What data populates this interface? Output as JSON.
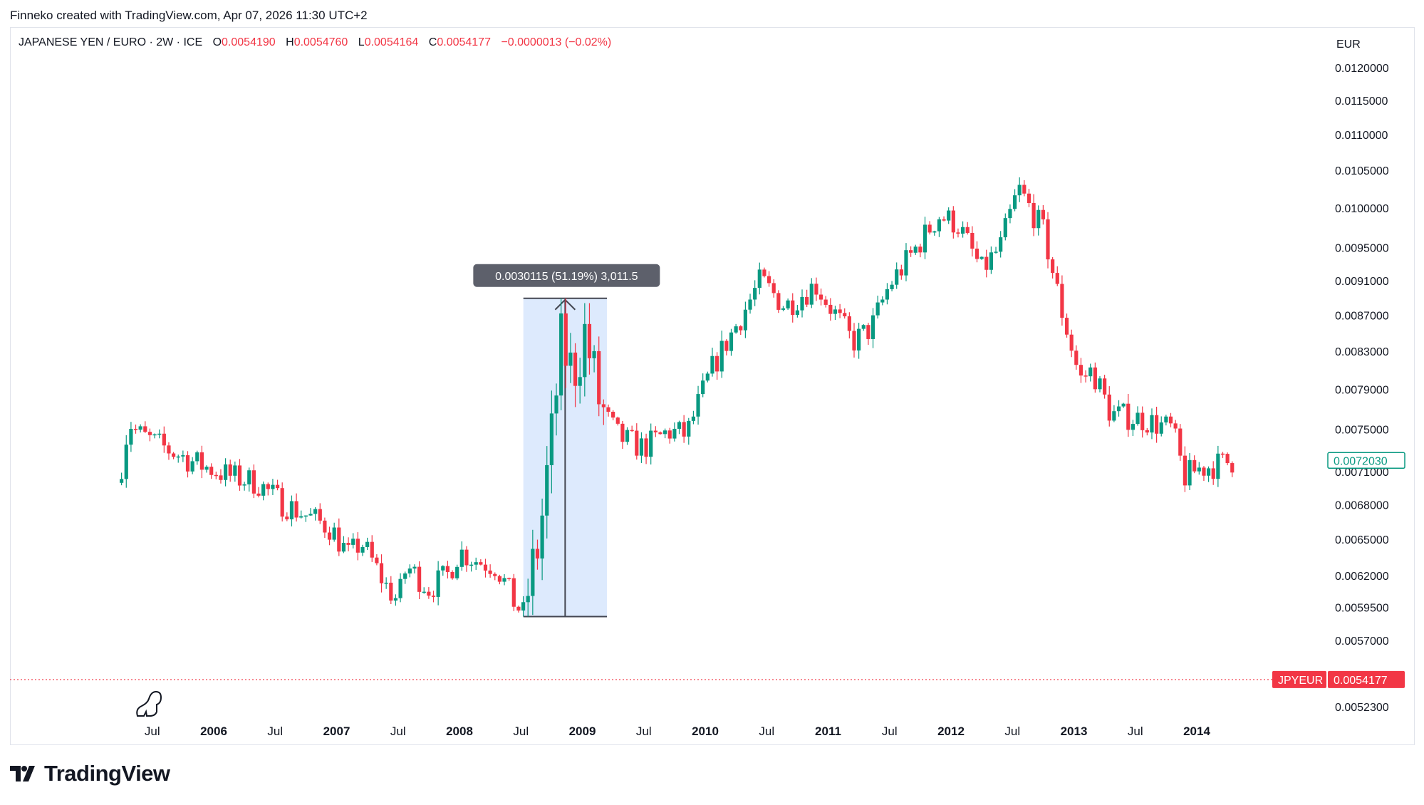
{
  "header": {
    "credit": "Finneko created with TradingView.com, Apr 07, 2026 11:30 UTC+2"
  },
  "legend": {
    "symbol": "JAPANESE YEN / EURO · 2W · ICE",
    "open_label": "O",
    "open": "0.0054190",
    "high_label": "H",
    "high": "0.0054760",
    "low_label": "L",
    "low": "0.0054164",
    "close_label": "C",
    "close": "0.0054177",
    "change": "−0.0000013 (−0.02%)"
  },
  "footer": {
    "brand": "TradingView"
  },
  "colors": {
    "up": "#089981",
    "down": "#f23645",
    "measure_fill": "#ddeafd",
    "measure_label_bg": "#5d606b",
    "last_price_bg": "#f23645"
  },
  "chart_data": {
    "type": "candlestick",
    "currency_label": "EUR",
    "y_ticks": [
      "0.0120000",
      "0.0115000",
      "0.0110000",
      "0.0105000",
      "0.0100000",
      "0.0095000",
      "0.0091000",
      "0.0087000",
      "0.0083000",
      "0.0079000",
      "0.0075000",
      "0.0071000",
      "0.0068000",
      "0.0065000",
      "0.0062000",
      "0.0059500",
      "0.0057000",
      "0.0052300"
    ],
    "x_ticks": [
      {
        "label": "Jul",
        "t": 2005.5,
        "bold": false
      },
      {
        "label": "2006",
        "t": 2006.0,
        "bold": true
      },
      {
        "label": "Jul",
        "t": 2006.5,
        "bold": false
      },
      {
        "label": "2007",
        "t": 2007.0,
        "bold": true
      },
      {
        "label": "Jul",
        "t": 2007.5,
        "bold": false
      },
      {
        "label": "2008",
        "t": 2008.0,
        "bold": true
      },
      {
        "label": "Jul",
        "t": 2008.5,
        "bold": false
      },
      {
        "label": "2009",
        "t": 2009.0,
        "bold": true
      },
      {
        "label": "Jul",
        "t": 2009.5,
        "bold": false
      },
      {
        "label": "2010",
        "t": 2010.0,
        "bold": true
      },
      {
        "label": "Jul",
        "t": 2010.5,
        "bold": false
      },
      {
        "label": "2011",
        "t": 2011.0,
        "bold": true
      },
      {
        "label": "Jul",
        "t": 2011.5,
        "bold": false
      },
      {
        "label": "2012",
        "t": 2012.0,
        "bold": true
      },
      {
        "label": "Jul",
        "t": 2012.5,
        "bold": false
      },
      {
        "label": "2013",
        "t": 2013.0,
        "bold": true
      },
      {
        "label": "Jul",
        "t": 2013.5,
        "bold": false
      },
      {
        "label": "2014",
        "t": 2014.0,
        "bold": true
      }
    ],
    "price_path": [
      [
        2005.25,
        0.00716
      ],
      [
        2005.31,
        0.00758
      ],
      [
        2005.38,
        0.00746
      ],
      [
        2005.55,
        0.00735
      ],
      [
        2005.85,
        0.00718
      ],
      [
        2006.15,
        0.00705
      ],
      [
        2006.35,
        0.007
      ],
      [
        2006.55,
        0.00682
      ],
      [
        2006.8,
        0.00668
      ],
      [
        2006.95,
        0.0066
      ],
      [
        2007.1,
        0.00636
      ],
      [
        2007.2,
        0.00648
      ],
      [
        2007.4,
        0.00612
      ],
      [
        2007.5,
        0.006
      ],
      [
        2007.57,
        0.00628
      ],
      [
        2007.75,
        0.0061
      ],
      [
        2007.9,
        0.0062
      ],
      [
        2008.0,
        0.0064
      ],
      [
        2008.15,
        0.00632
      ],
      [
        2008.3,
        0.00628
      ],
      [
        2008.45,
        0.00598
      ],
      [
        2008.52,
        0.0059
      ],
      [
        2008.65,
        0.0065
      ],
      [
        2008.75,
        0.0074
      ],
      [
        2008.83,
        0.0084
      ],
      [
        2008.92,
        0.00805
      ],
      [
        2009.02,
        0.0085
      ],
      [
        2009.15,
        0.0077
      ],
      [
        2009.3,
        0.00742
      ],
      [
        2009.5,
        0.00732
      ],
      [
        2009.7,
        0.00748
      ],
      [
        2009.85,
        0.00745
      ],
      [
        2010.05,
        0.0081
      ],
      [
        2010.3,
        0.0087
      ],
      [
        2010.45,
        0.0091
      ],
      [
        2010.65,
        0.0088
      ],
      [
        2010.9,
        0.00905
      ],
      [
        2011.2,
        0.0084
      ],
      [
        2011.35,
        0.00855
      ],
      [
        2011.5,
        0.00905
      ],
      [
        2011.65,
        0.00935
      ],
      [
        2011.9,
        0.0099
      ],
      [
        2012.05,
        0.0098
      ],
      [
        2012.25,
        0.00922
      ],
      [
        2012.4,
        0.0095
      ],
      [
        2012.55,
        0.01025
      ],
      [
        2012.75,
        0.0097
      ],
      [
        2012.9,
        0.00875
      ],
      [
        2013.05,
        0.008
      ],
      [
        2013.15,
        0.0081
      ],
      [
        2013.3,
        0.00765
      ],
      [
        2013.55,
        0.0076
      ],
      [
        2013.8,
        0.0075
      ],
      [
        2013.9,
        0.00705
      ],
      [
        2014.0,
        0.00712
      ],
      [
        2014.3,
        0.0072
      ]
    ],
    "measure": {
      "t_start": 2008.52,
      "t_end": 2009.2,
      "low": 0.00588,
      "high": 0.008892,
      "label": "0.0030115 (51.19%) 3,011.5"
    },
    "last_bar_price": "0.0072030",
    "price_line": {
      "symbol": "JPYEUR",
      "value": "0.0054177"
    }
  }
}
